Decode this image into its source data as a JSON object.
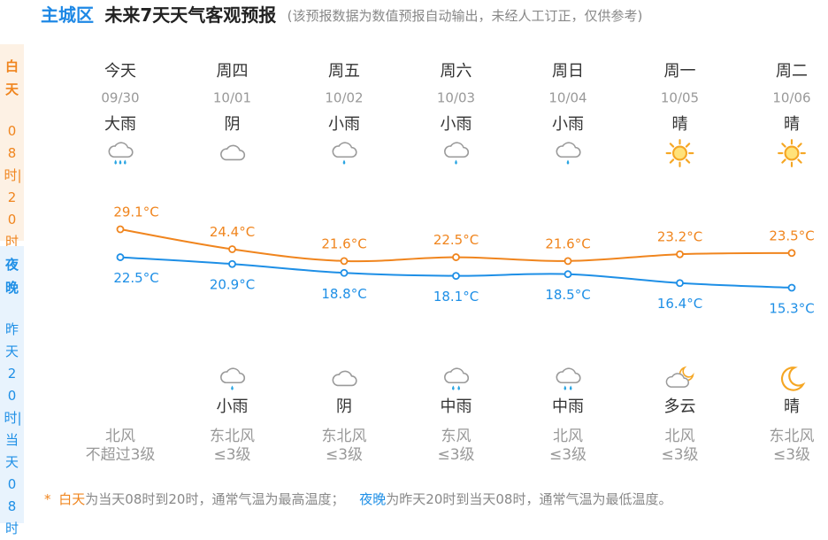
{
  "header": {
    "city": "主城区",
    "title": "未来7天天气客观预报",
    "note": "(该预报数据为数值预报自动输出，未经人工订正，仅供参考)"
  },
  "side": [
    {
      "label": "白天",
      "time": "08时|20时"
    },
    {
      "label": "夜晚",
      "time": "昨天20时|当天08时"
    }
  ],
  "days": [
    {
      "weekday": "今天",
      "date": "09/30",
      "day_weather": "大雨",
      "night_weather": null,
      "wind_dir": "北风",
      "wind_level": "不超过3级"
    },
    {
      "weekday": "周四",
      "date": "10/01",
      "day_weather": "阴",
      "night_weather": "小雨",
      "wind_dir": "东北风",
      "wind_level": "≤3级"
    },
    {
      "weekday": "周五",
      "date": "10/02",
      "day_weather": "小雨",
      "night_weather": "阴",
      "wind_dir": "东北风",
      "wind_level": "≤3级"
    },
    {
      "weekday": "周六",
      "date": "10/03",
      "day_weather": "小雨",
      "night_weather": "中雨",
      "wind_dir": "东风",
      "wind_level": "≤3级"
    },
    {
      "weekday": "周日",
      "date": "10/04",
      "day_weather": "小雨",
      "night_weather": "中雨",
      "wind_dir": "北风",
      "wind_level": "≤3级"
    },
    {
      "weekday": "周一",
      "date": "10/05",
      "day_weather": "晴",
      "night_weather": "多云",
      "wind_dir": "北风",
      "wind_level": "≤3级"
    },
    {
      "weekday": "周二",
      "date": "10/06",
      "day_weather": "晴",
      "night_weather": "晴",
      "wind_dir": "东北风",
      "wind_level": "≤3级"
    }
  ],
  "chart_data": {
    "type": "line",
    "series": [
      {
        "color": "#f0851e",
        "values": [
          29.1,
          24.4,
          21.6,
          22.5,
          21.6,
          23.2,
          23.5
        ],
        "value_labels": [
          "29.1°C",
          "24.4°C",
          "21.6°C",
          "22.5°C",
          "21.6°C",
          "23.2°C",
          "23.5°C"
        ]
      },
      {
        "color": "#1e8fe6",
        "values": [
          22.5,
          20.9,
          18.8,
          18.1,
          18.5,
          16.4,
          15.3
        ],
        "value_labels": [
          "22.5°C",
          "20.9°C",
          "18.8°C",
          "18.1°C",
          "18.5°C",
          "16.4°C",
          "15.3°C"
        ]
      }
    ]
  },
  "footnote": {
    "star": "*",
    "day": "白天",
    "day_text": "为当天08时到20时，通常气温为最高温度；",
    "night": "夜晚",
    "night_text": "为昨天20时到当天08时，通常气温为最低温度。"
  }
}
